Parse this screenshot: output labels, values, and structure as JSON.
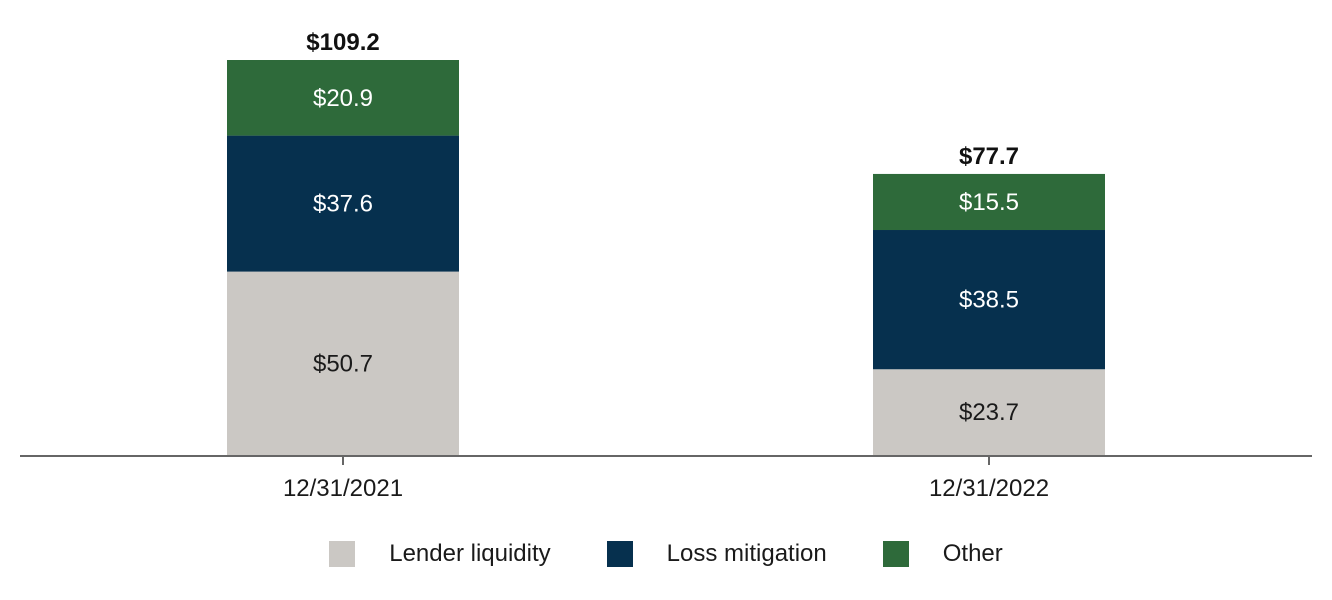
{
  "chart_data": {
    "type": "bar",
    "stacked": true,
    "categories": [
      "12/31/2021",
      "12/31/2022"
    ],
    "series": [
      {
        "name": "Lender liquidity",
        "values": [
          50.7,
          23.7
        ],
        "value_labels": [
          "$50.7",
          "$23.7"
        ],
        "color": "#cbc8c4",
        "label_color": "#1a1a1a"
      },
      {
        "name": "Loss mitigation",
        "values": [
          37.6,
          38.5
        ],
        "value_labels": [
          "$37.6",
          "$38.5"
        ],
        "color": "#06304e",
        "label_color": "#ffffff"
      },
      {
        "name": "Other",
        "values": [
          20.9,
          15.5
        ],
        "value_labels": [
          "$20.9",
          "$15.5"
        ],
        "color": "#2e6a3a",
        "label_color": "#ffffff"
      }
    ],
    "totals": [
      109.2,
      77.7
    ],
    "total_labels": [
      "$109.2",
      "$77.7"
    ],
    "ylim": [
      0,
      109.2
    ],
    "grid": false,
    "legend_position": "bottom"
  }
}
